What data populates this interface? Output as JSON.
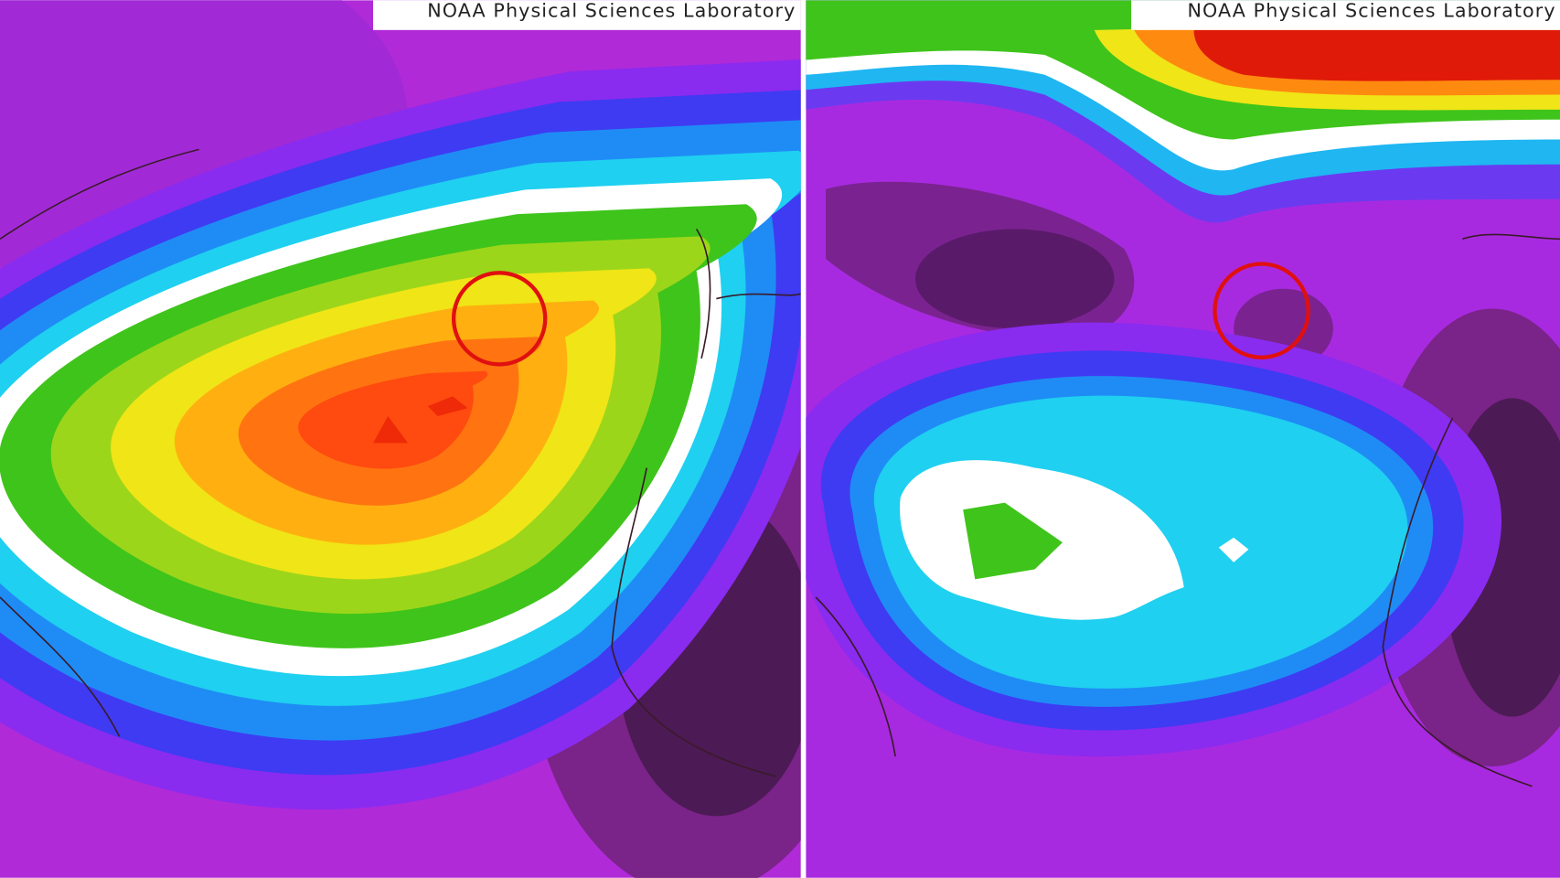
{
  "panels": [
    {
      "credit": "NOAA Physical Sciences Laboratory"
    },
    {
      "credit": "NOAA Physical Sciences Laboratory"
    }
  ]
}
